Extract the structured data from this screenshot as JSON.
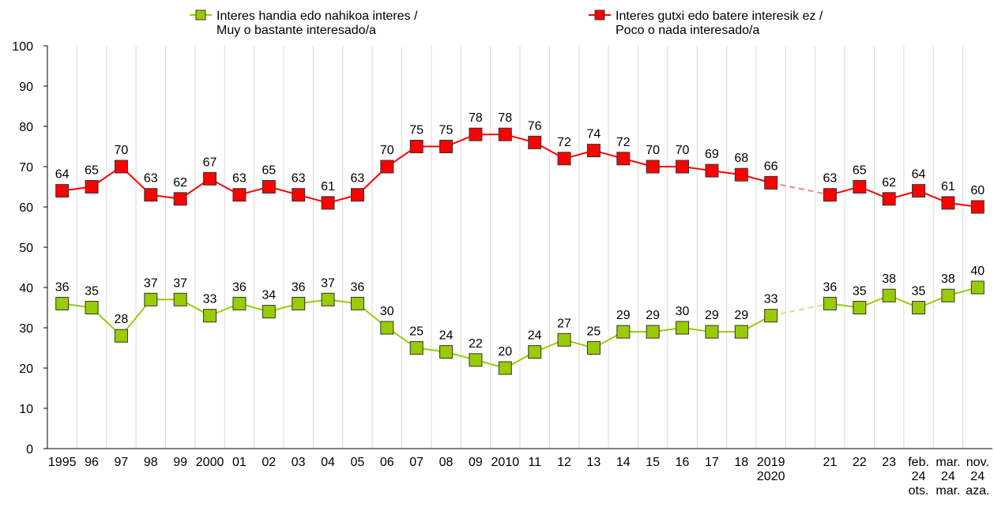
{
  "chart_data": {
    "type": "line",
    "categories": [
      "1995",
      "96",
      "97",
      "98",
      "99",
      "2000",
      "01",
      "02",
      "03",
      "04",
      "05",
      "06",
      "07",
      "08",
      "09",
      "2010",
      "11",
      "12",
      "13",
      "14",
      "15",
      "16",
      "17",
      "18",
      "2019\n2020",
      null,
      "21",
      "22",
      "23",
      "feb.\n24\nots.",
      "mar.\n24\nmar.",
      "nov.\n24\naza."
    ],
    "series": [
      {
        "name": "Interes handia edo nahikoa interes /\nMuy o bastante interesado/a",
        "color": "#99cc00",
        "values": [
          36,
          35,
          28,
          37,
          37,
          33,
          36,
          34,
          36,
          37,
          36,
          30,
          25,
          24,
          22,
          20,
          24,
          27,
          25,
          29,
          29,
          30,
          29,
          29,
          33,
          null,
          36,
          35,
          38,
          35,
          38,
          40
        ]
      },
      {
        "name": "Interes gutxi edo batere interesik ez /\nPoco o nada interesado/a",
        "color": "#ff0000",
        "values": [
          64,
          65,
          70,
          63,
          62,
          67,
          63,
          65,
          63,
          61,
          63,
          70,
          75,
          75,
          78,
          78,
          76,
          72,
          74,
          72,
          70,
          70,
          69,
          68,
          66,
          null,
          63,
          65,
          62,
          64,
          61,
          60
        ]
      }
    ],
    "ylim": [
      0,
      100
    ],
    "yticks": [
      0,
      10,
      20,
      30,
      40,
      50,
      60,
      70,
      80,
      90,
      100
    ],
    "grid": true,
    "legend": "top"
  }
}
